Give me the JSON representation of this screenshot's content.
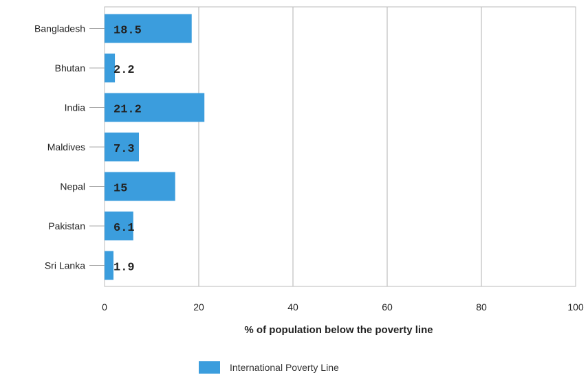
{
  "chart_data": {
    "type": "bar",
    "orientation": "horizontal",
    "categories": [
      "Bangladesh",
      "Bhutan",
      "India",
      "Maldives",
      "Nepal",
      "Pakistan",
      "Sri Lanka"
    ],
    "series": [
      {
        "name": "International Poverty Line",
        "values": [
          18.5,
          2.2,
          21.2,
          7.3,
          15,
          6.1,
          1.9
        ],
        "color": "#3b9ddd"
      }
    ],
    "value_labels": [
      "18.5",
      "2.2",
      "21.2",
      "7.3",
      "15",
      "6.1",
      "1.9"
    ],
    "xlabel": "% of population below the poverty line",
    "ylabel": "",
    "xlim": [
      0,
      100
    ],
    "xticks": [
      0,
      20,
      40,
      60,
      80,
      100
    ],
    "xtick_labels": [
      "0",
      "20",
      "40",
      "60",
      "80",
      "100"
    ],
    "grid": true,
    "legend_position": "bottom"
  }
}
